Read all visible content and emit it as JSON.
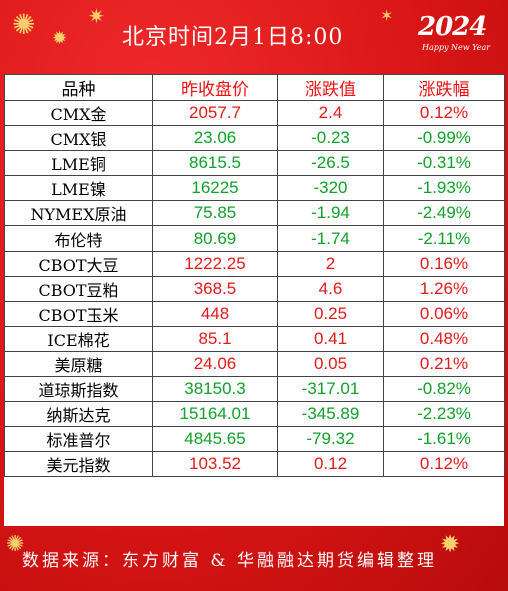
{
  "header": {
    "title": "北京时间2月1日8:00",
    "year_mark": "2024",
    "year_sub": "Happy New Year"
  },
  "table": {
    "columns": [
      "品种",
      "昨收盘价",
      "涨跌值",
      "涨跌幅"
    ],
    "rows": [
      {
        "name": "CMX金",
        "close": "2057.7",
        "change": "2.4",
        "pct": "0.12%",
        "dir": "up"
      },
      {
        "name": "CMX银",
        "close": "23.06",
        "change": "-0.23",
        "pct": "-0.99%",
        "dir": "down"
      },
      {
        "name": "LME铜",
        "close": "8615.5",
        "change": "-26.5",
        "pct": "-0.31%",
        "dir": "down"
      },
      {
        "name": "LME镍",
        "close": "16225",
        "change": "-320",
        "pct": "-1.93%",
        "dir": "down"
      },
      {
        "name": "NYMEX原油",
        "close": "75.85",
        "change": "-1.94",
        "pct": "-2.49%",
        "dir": "down"
      },
      {
        "name": "布伦特",
        "close": "80.69",
        "change": "-1.74",
        "pct": "-2.11%",
        "dir": "down"
      },
      {
        "name": "CBOT大豆",
        "close": "1222.25",
        "change": "2",
        "pct": "0.16%",
        "dir": "up"
      },
      {
        "name": "CBOT豆粕",
        "close": "368.5",
        "change": "4.6",
        "pct": "1.26%",
        "dir": "up"
      },
      {
        "name": "CBOT玉米",
        "close": "448",
        "change": "0.25",
        "pct": "0.06%",
        "dir": "up"
      },
      {
        "name": "ICE棉花",
        "close": "85.1",
        "change": "0.41",
        "pct": "0.48%",
        "dir": "up"
      },
      {
        "name": "美原糖",
        "close": "24.06",
        "change": "0.05",
        "pct": "0.21%",
        "dir": "up"
      },
      {
        "name": "道琼斯指数",
        "close": "38150.3",
        "change": "-317.01",
        "pct": "-0.82%",
        "dir": "down"
      },
      {
        "name": "纳斯达克",
        "close": "15164.01",
        "change": "-345.89",
        "pct": "-2.23%",
        "dir": "down"
      },
      {
        "name": "标准普尔",
        "close": "4845.65",
        "change": "-79.32",
        "pct": "-1.61%",
        "dir": "down"
      },
      {
        "name": "美元指数",
        "close": "103.52",
        "change": "0.12",
        "pct": "0.12%",
        "dir": "up"
      }
    ]
  },
  "footer": {
    "source": "数据来源：东方财富 & 华融融达期货编辑整理"
  },
  "colors": {
    "background": "#d91515",
    "up": "#e41a1a",
    "down": "#12a12a",
    "header_red": "#e11111"
  }
}
